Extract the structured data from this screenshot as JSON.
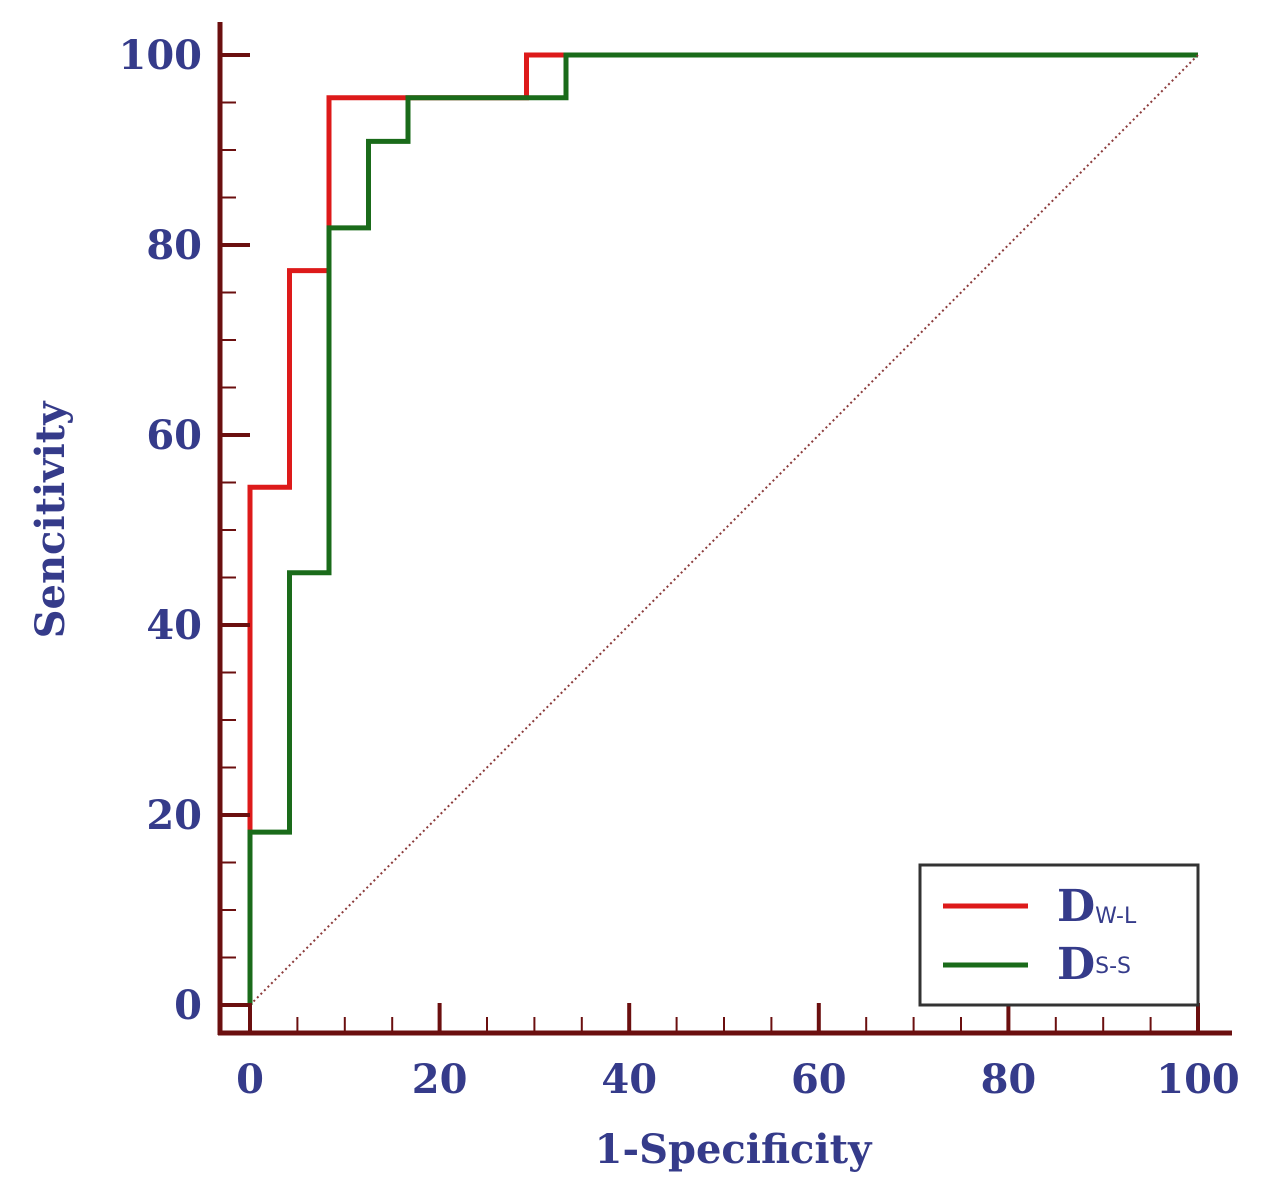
{
  "chart_data": {
    "type": "line",
    "title": "",
    "xlabel": "1-Specificity",
    "ylabel": "Sencitivity",
    "xlim": [
      0,
      100
    ],
    "ylim": [
      0,
      100
    ],
    "x_ticks": [
      0,
      20,
      40,
      60,
      80,
      100
    ],
    "y_ticks": [
      0,
      20,
      40,
      60,
      80,
      100
    ],
    "x_minor_step": 5,
    "y_minor_step": 5,
    "grid": false,
    "legend_position": "bottom-right",
    "series": [
      {
        "name": "D",
        "subscript": "W-L",
        "color": "#dd1a1a",
        "step": true,
        "x": [
          0,
          0,
          4.17,
          4.17,
          8.33,
          8.33,
          16.67,
          29.17,
          29.17,
          33.33,
          100
        ],
        "y": [
          0,
          54.5,
          54.5,
          77.3,
          77.3,
          95.5,
          95.5,
          95.5,
          100,
          100,
          100
        ]
      },
      {
        "name": "D",
        "subscript": "S-S",
        "color": "#1a6b1a",
        "step": true,
        "x": [
          0,
          0,
          4.17,
          4.17,
          8.33,
          8.33,
          12.5,
          12.5,
          16.67,
          16.67,
          33.33,
          33.33,
          100
        ],
        "y": [
          0,
          18.2,
          18.2,
          45.5,
          45.5,
          81.8,
          81.8,
          90.9,
          90.9,
          95.5,
          95.5,
          100,
          100
        ]
      },
      {
        "name": "reference",
        "color": "#8b3a3a",
        "dashed": true,
        "x": [
          0,
          100
        ],
        "y": [
          0,
          100
        ]
      }
    ],
    "colors": {
      "axis": "#6b0f0f",
      "label": "#353b8a",
      "legend_border": "#333333"
    }
  }
}
